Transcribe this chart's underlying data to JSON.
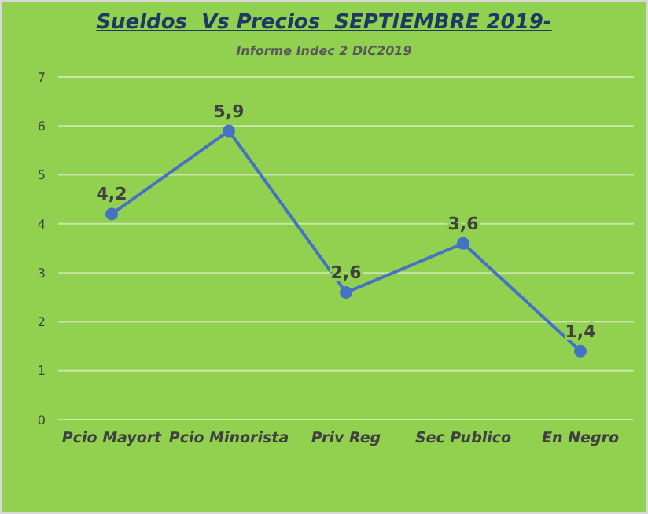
{
  "chart_data": {
    "type": "line",
    "title": "Sueldos  Vs Precios  SEPTIEMBRE 2019-",
    "subtitle": "Informe Indec 2 DIC2019",
    "categories": [
      "Pcio Mayort",
      "Pcio Minorista",
      "Priv Reg",
      "Sec Publico",
      "En Negro"
    ],
    "series": [
      {
        "color": "#4472c4",
        "values": [
          4.2,
          5.9,
          2.6,
          3.6,
          1.4
        ],
        "value_labels": [
          "4,2",
          "5,9",
          "2,6",
          "3,6",
          "1,4"
        ]
      }
    ],
    "ylim": [
      0,
      7
    ],
    "yticks": [
      0,
      1,
      2,
      3,
      4,
      5,
      6,
      7
    ],
    "grid": "y",
    "legend": false,
    "marker": "circle",
    "line_style": "solid"
  }
}
